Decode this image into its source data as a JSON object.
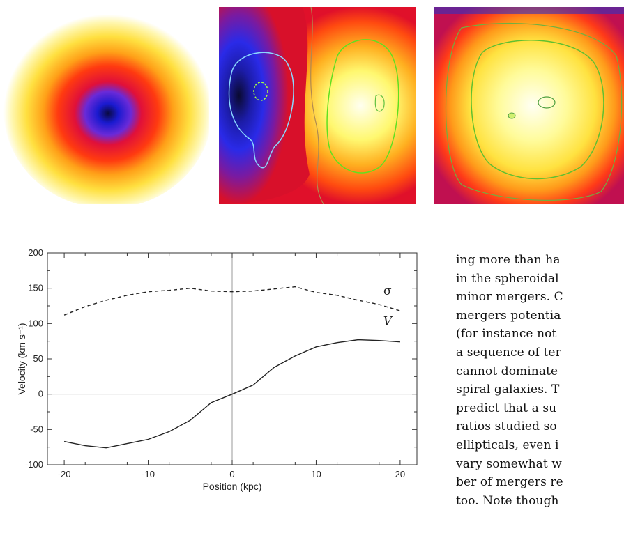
{
  "panels": [
    {
      "name": "surface-density-map"
    },
    {
      "name": "velocity-map"
    },
    {
      "name": "dispersion-map"
    }
  ],
  "body_text": [
    "ing more than ha",
    "in the spheroidal",
    "minor mergers. C",
    "mergers potentia",
    "(for instance not",
    "a sequence of ter",
    "cannot dominate",
    "spiral galaxies. T",
    "predict that a su",
    "ratios studied so",
    "ellipticals, even i",
    "vary somewhat w",
    "ber of mergers re",
    "too. Note though"
  ],
  "chart_data": {
    "type": "line",
    "xlabel": "Position (kpc)",
    "ylabel": "Velocity (km s⁻¹)",
    "xlim": [
      -22,
      22
    ],
    "ylim": [
      -100,
      200
    ],
    "x_ticks": [
      -20,
      -10,
      0,
      10,
      20
    ],
    "y_ticks": [
      -100,
      -50,
      0,
      50,
      100,
      150,
      200
    ],
    "grid": false,
    "reference_lines": {
      "x": 0,
      "y": 0
    },
    "series": [
      {
        "name": "σ",
        "style": "dashed",
        "x": [
          -20,
          -17.5,
          -15,
          -12.5,
          -10,
          -7.5,
          -5,
          -2.5,
          0,
          2.5,
          5,
          7.5,
          10,
          12.5,
          15,
          17.5,
          20
        ],
        "y": [
          112,
          124,
          133,
          140,
          145,
          147,
          150,
          146,
          145,
          146,
          149,
          152,
          144,
          140,
          133,
          127,
          118
        ]
      },
      {
        "name": "V",
        "style": "solid",
        "x": [
          -20,
          -17.5,
          -15,
          -12.5,
          -10,
          -7.5,
          -5,
          -2.5,
          0,
          2.5,
          5,
          7.5,
          10,
          12.5,
          15,
          17.5,
          20
        ],
        "y": [
          -67,
          -73,
          -76,
          -70,
          -64,
          -53,
          -37,
          -12,
          0,
          13,
          38,
          54,
          67,
          73,
          77,
          76,
          74
        ]
      }
    ]
  }
}
